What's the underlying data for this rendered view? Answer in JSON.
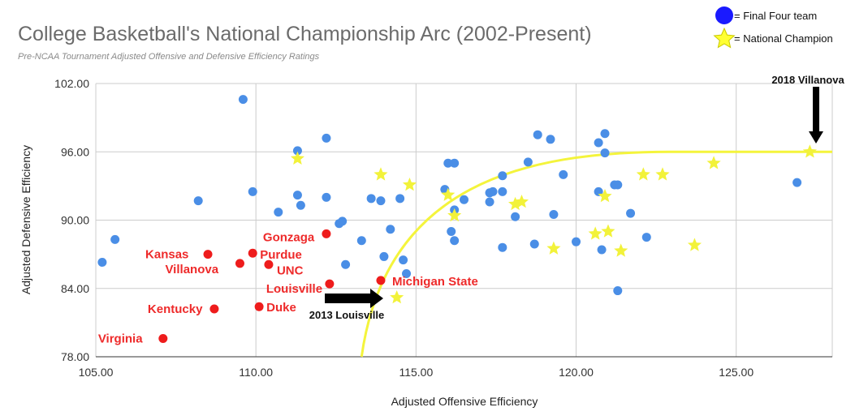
{
  "chart_data": {
    "type": "scatter",
    "title": "College Basketball's National Championship Arc (2002-Present)",
    "subtitle": "Pre-NCAA Tournament Adjusted Offensive and Defensive Efficiency Ratings",
    "xlabel": "Adjusted Offensive Efficiency",
    "ylabel": "Adjusted Defensive Efficiency",
    "xlim": [
      105,
      128
    ],
    "ylim": [
      78,
      102
    ],
    "x_ticks": [
      "105.00",
      "110.00",
      "115.00",
      "120.00",
      "125.00"
    ],
    "y_ticks": [
      "78.00",
      "84.00",
      "90.00",
      "96.00",
      "102.00"
    ],
    "grid": true,
    "legend_position": "top-right",
    "legend": [
      {
        "label": "= Final Four team",
        "marker": "circle",
        "color": "#1a1aff"
      },
      {
        "label": "= National Champion",
        "marker": "star",
        "color": "#ffff33"
      }
    ],
    "colors": {
      "final_four": "#4a8ee6",
      "champion": "#f2f23a",
      "highlight": "#ee1c1c",
      "arc": "#f4f43c"
    },
    "series": [
      {
        "name": "Final Four team",
        "marker": "circle",
        "points": [
          [
            109.6,
            100.6
          ],
          [
            105.2,
            86.3
          ],
          [
            105.6,
            88.3
          ],
          [
            108.2,
            91.7
          ],
          [
            109.9,
            92.5
          ],
          [
            110.7,
            90.7
          ],
          [
            111.3,
            96.1
          ],
          [
            111.3,
            92.2
          ],
          [
            111.4,
            91.3
          ],
          [
            112.2,
            97.2
          ],
          [
            112.2,
            92.0
          ],
          [
            112.6,
            89.7
          ],
          [
            112.7,
            89.9
          ],
          [
            112.8,
            86.1
          ],
          [
            113.3,
            88.2
          ],
          [
            113.6,
            91.9
          ],
          [
            113.9,
            91.7
          ],
          [
            114.0,
            86.8
          ],
          [
            114.2,
            89.2
          ],
          [
            114.5,
            91.9
          ],
          [
            114.6,
            86.5
          ],
          [
            114.7,
            85.3
          ],
          [
            115.9,
            92.7
          ],
          [
            116.0,
            95.0
          ],
          [
            116.1,
            89.0
          ],
          [
            116.2,
            90.9
          ],
          [
            116.2,
            95.0
          ],
          [
            116.2,
            88.2
          ],
          [
            116.5,
            91.8
          ],
          [
            117.3,
            92.4
          ],
          [
            117.3,
            91.6
          ],
          [
            117.4,
            92.5
          ],
          [
            117.7,
            87.6
          ],
          [
            117.7,
            92.5
          ],
          [
            117.7,
            93.9
          ],
          [
            118.1,
            90.3
          ],
          [
            118.5,
            95.1
          ],
          [
            118.7,
            87.9
          ],
          [
            118.8,
            97.5
          ],
          [
            119.2,
            97.1
          ],
          [
            119.3,
            90.5
          ],
          [
            119.6,
            94.0
          ],
          [
            120.0,
            88.1
          ],
          [
            120.7,
            96.8
          ],
          [
            120.7,
            92.5
          ],
          [
            120.8,
            87.4
          ],
          [
            120.9,
            95.9
          ],
          [
            120.9,
            97.6
          ],
          [
            121.2,
            93.1
          ],
          [
            121.3,
            93.1
          ],
          [
            121.3,
            83.8
          ],
          [
            121.7,
            90.6
          ],
          [
            122.2,
            88.5
          ],
          [
            126.9,
            93.3
          ]
        ]
      },
      {
        "name": "National Champion",
        "marker": "star",
        "points": [
          [
            111.3,
            95.4
          ],
          [
            113.9,
            94.0
          ],
          [
            114.4,
            83.2
          ],
          [
            114.8,
            93.1
          ],
          [
            116.0,
            92.2
          ],
          [
            116.2,
            90.4
          ],
          [
            118.1,
            91.4
          ],
          [
            118.3,
            91.6
          ],
          [
            119.3,
            87.5
          ],
          [
            120.6,
            88.8
          ],
          [
            120.9,
            92.1
          ],
          [
            121.0,
            89.0
          ],
          [
            121.4,
            87.3
          ],
          [
            122.1,
            94.0
          ],
          [
            122.7,
            94.0
          ],
          [
            123.7,
            87.8
          ],
          [
            124.3,
            95.0
          ],
          [
            127.3,
            96.0
          ]
        ]
      },
      {
        "marker": "circle",
        "points": [
          {
            "x": 112.2,
            "y": 88.8,
            "label": "Gonzaga"
          },
          {
            "x": 108.5,
            "y": 87.0,
            "label": "Kansas"
          },
          {
            "x": 109.5,
            "y": 86.2,
            "label": "Villanova"
          },
          {
            "x": 109.9,
            "y": 87.1,
            "label": "Purdue"
          },
          {
            "x": 110.4,
            "y": 86.1,
            "label": "UNC"
          },
          {
            "x": 112.3,
            "y": 84.4,
            "label": "Louisville"
          },
          {
            "x": 113.9,
            "y": 84.7,
            "label": "Michigan State"
          },
          {
            "x": 108.7,
            "y": 82.2,
            "label": "Kentucky"
          },
          {
            "x": 110.1,
            "y": 82.4,
            "label": "Duke"
          },
          {
            "x": 107.1,
            "y": 79.6,
            "label": "Virginia"
          }
        ]
      }
    ],
    "arc": {
      "start": [
        113.3,
        78
      ],
      "end": [
        128,
        96
      ]
    },
    "annotations": [
      {
        "text": "2018 Villanova",
        "x": 127.3,
        "y": 96.0
      },
      {
        "text": "2013 Louisville",
        "x": 114.4,
        "y": 83.2
      }
    ]
  }
}
